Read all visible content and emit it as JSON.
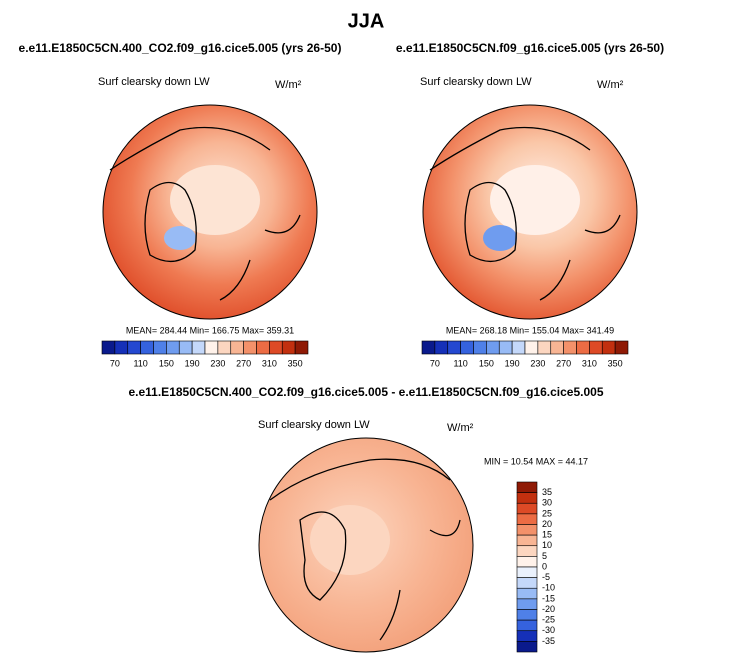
{
  "title": "JJA",
  "panels": [
    {
      "subtitle": "e.e11.E1850C5CN.400_CO2.f09_g16.cice5.005 (yrs 26-50)",
      "variable": "Surf clearsky down LW",
      "units": "W/m²",
      "stats": "MEAN= 284.44  Min= 166.75  Max= 359.31",
      "colorbar": {
        "labels": [
          70,
          110,
          150,
          190,
          230,
          270,
          310,
          350
        ],
        "colors": [
          "#0a1a8c",
          "#1530b8",
          "#2448d0",
          "#3562de",
          "#4f80e8",
          "#6f9cef",
          "#98bbf5",
          "#c4d8fa",
          "#fff2ea",
          "#fcd6c0",
          "#f8b594",
          "#f3916a",
          "#ec6c44",
          "#dd4a26",
          "#c2300f",
          "#8f1a05"
        ]
      }
    },
    {
      "subtitle": "e.e11.E1850C5CN.f09_g16.cice5.005 (yrs 26-50)",
      "variable": "Surf clearsky down LW",
      "units": "W/m²",
      "stats": "MEAN= 268.18  Min= 155.04  Max= 341.49",
      "colorbar": {
        "labels": [
          70,
          110,
          150,
          190,
          230,
          270,
          310,
          350
        ],
        "colors": [
          "#0a1a8c",
          "#1530b8",
          "#2448d0",
          "#3562de",
          "#4f80e8",
          "#6f9cef",
          "#98bbf5",
          "#c4d8fa",
          "#fff2ea",
          "#fcd6c0",
          "#f8b594",
          "#f3916a",
          "#ec6c44",
          "#dd4a26",
          "#c2300f",
          "#8f1a05"
        ]
      }
    }
  ],
  "difference": {
    "title": "e.e11.E1850C5CN.400_CO2.f09_g16.cice5.005 - e.e11.E1850C5CN.f09_g16.cice5.005",
    "variable": "Surf clearsky down LW",
    "units": "W/m²",
    "stats": "MIN =  10.54 MAX =  44.17",
    "colorbar": {
      "labels": [
        35,
        30,
        25,
        20,
        15,
        10,
        5,
        0,
        -5,
        -10,
        -15,
        -20,
        -25,
        -30,
        -35
      ],
      "colors": [
        "#8f1a05",
        "#c2300f",
        "#dd4a26",
        "#ec6c44",
        "#f3916a",
        "#f8b594",
        "#fcd6c0",
        "#fff2ea",
        "#eaf1fc",
        "#c4d8fa",
        "#98bbf5",
        "#6f9cef",
        "#4f80e8",
        "#3562de",
        "#1530b8",
        "#0a1a8c"
      ]
    }
  }
}
